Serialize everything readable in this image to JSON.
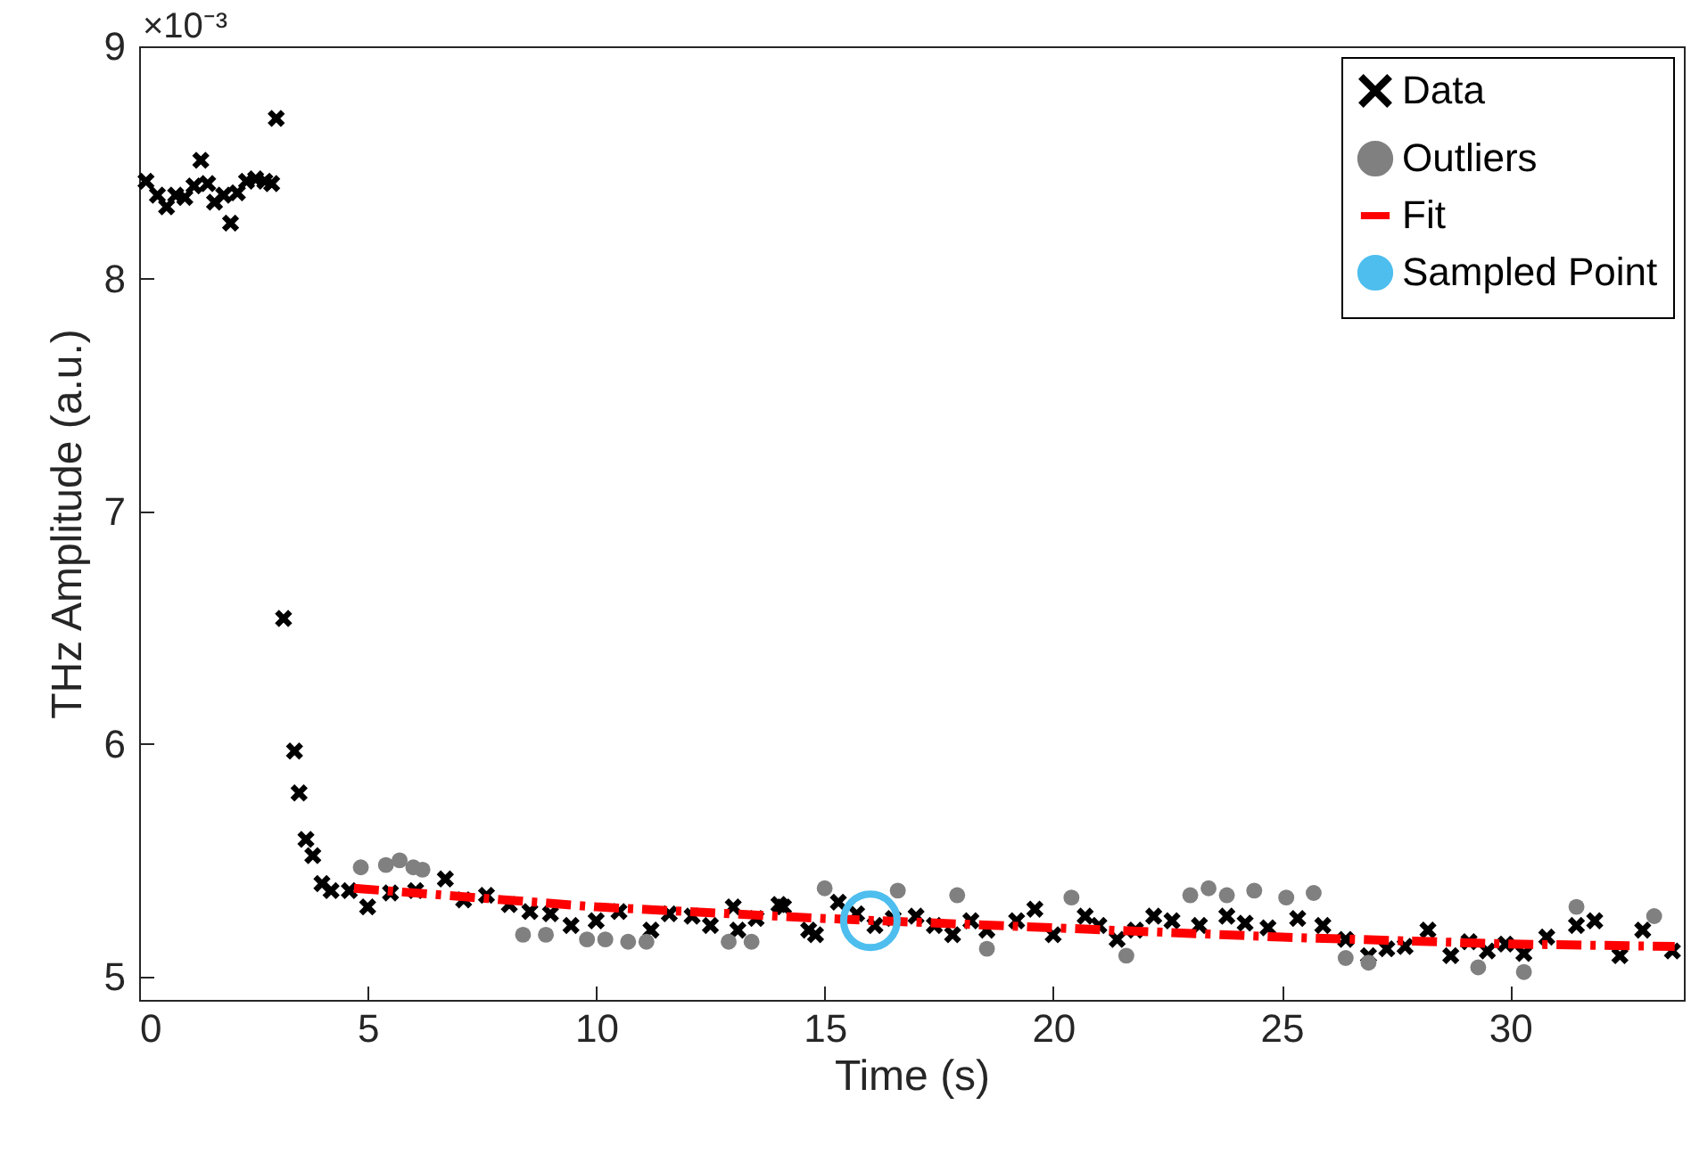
{
  "chart_data": {
    "type": "scatter",
    "xlabel": "Time (s)",
    "ylabel": "THz Amplitude (a.u.)",
    "annotations": [
      "×10⁻³"
    ],
    "xlim": [
      0,
      33.8
    ],
    "xticks": [
      0,
      5,
      10,
      15,
      20,
      25,
      30
    ],
    "ylim": [
      4.9,
      9
    ],
    "yticks": [
      5,
      6,
      7,
      8,
      9
    ],
    "grid": false,
    "legend": "top right",
    "series": [
      {
        "name": "Data",
        "color": "#000000",
        "marker": "cross",
        "x": [
          0.15,
          0.4,
          0.6,
          0.8,
          1.0,
          1.2,
          1.35,
          1.5,
          1.65,
          1.85,
          2.0,
          2.15,
          2.35,
          2.55,
          2.75,
          2.9,
          3.0,
          3.16,
          3.4,
          3.5,
          3.65,
          3.8,
          4.0,
          4.2,
          4.6,
          5.0,
          5.5,
          6.05,
          6.7,
          7.1,
          7.6,
          8.1,
          8.55,
          9.0,
          9.45,
          10.0,
          10.5,
          11.2,
          11.6,
          12.1,
          12.5,
          13.0,
          13.1,
          13.5,
          14.0,
          14.1,
          14.65,
          14.8,
          15.3,
          15.7,
          16.1,
          16.5,
          17.0,
          17.4,
          17.8,
          18.2,
          18.55,
          19.2,
          19.6,
          20.0,
          20.7,
          21.0,
          21.4,
          21.8,
          22.2,
          22.6,
          23.2,
          23.8,
          24.2,
          24.7,
          25.35,
          25.9,
          26.4,
          26.9,
          27.3,
          27.7,
          28.2,
          28.7,
          29.1,
          29.5,
          29.9,
          30.3,
          30.8,
          31.45,
          31.85,
          32.4,
          32.9,
          33.55
        ],
        "values": [
          8.42,
          8.36,
          8.31,
          8.36,
          8.35,
          8.4,
          8.51,
          8.41,
          8.33,
          8.36,
          8.24,
          8.37,
          8.42,
          8.43,
          8.42,
          8.41,
          8.69,
          6.54,
          5.97,
          5.79,
          5.59,
          5.52,
          5.4,
          5.37,
          5.37,
          5.3,
          5.36,
          5.37,
          5.42,
          5.33,
          5.35,
          5.31,
          5.28,
          5.27,
          5.22,
          5.24,
          5.28,
          5.2,
          5.27,
          5.26,
          5.22,
          5.3,
          5.2,
          5.25,
          5.31,
          5.3,
          5.2,
          5.18,
          5.32,
          5.27,
          5.22,
          5.25,
          5.26,
          5.22,
          5.18,
          5.24,
          5.2,
          5.24,
          5.29,
          5.18,
          5.26,
          5.22,
          5.16,
          5.2,
          5.26,
          5.24,
          5.22,
          5.26,
          5.23,
          5.21,
          5.25,
          5.22,
          5.16,
          5.09,
          5.12,
          5.13,
          5.2,
          5.09,
          5.15,
          5.11,
          5.14,
          5.1,
          5.17,
          5.22,
          5.24,
          5.09,
          5.2,
          5.11
        ]
      },
      {
        "name": "Outliers",
        "color": "#808080",
        "marker": "circle",
        "x": [
          4.85,
          5.4,
          5.7,
          6.0,
          6.2,
          8.4,
          8.9,
          9.8,
          10.2,
          10.7,
          11.1,
          12.9,
          13.4,
          15.0,
          16.6,
          17.9,
          18.55,
          20.4,
          21.6,
          23.0,
          23.4,
          23.8,
          24.4,
          25.1,
          25.7,
          26.4,
          26.9,
          29.3,
          30.3,
          31.45,
          33.15
        ],
        "values": [
          5.47,
          5.48,
          5.5,
          5.47,
          5.46,
          5.18,
          5.18,
          5.16,
          5.16,
          5.15,
          5.15,
          5.15,
          5.15,
          5.38,
          5.37,
          5.35,
          5.12,
          5.34,
          5.09,
          5.35,
          5.38,
          5.35,
          5.37,
          5.34,
          5.36,
          5.08,
          5.06,
          5.04,
          5.02,
          5.3,
          5.26
        ]
      },
      {
        "name": "Fit",
        "type": "line",
        "color": "#ff0000",
        "line_style": "dashed",
        "marker": "none",
        "x": [
          4.7,
          10,
          15,
          20,
          25,
          30,
          33.6
        ],
        "values": [
          5.38,
          5.3,
          5.25,
          5.21,
          5.17,
          5.14,
          5.13
        ]
      },
      {
        "name": "Sampled Point",
        "type": "bubble",
        "color": "#4dbeee",
        "marker": "circle",
        "x": [
          16.0
        ],
        "values": [
          5.24
        ],
        "sizes": [
          1
        ]
      }
    ]
  }
}
